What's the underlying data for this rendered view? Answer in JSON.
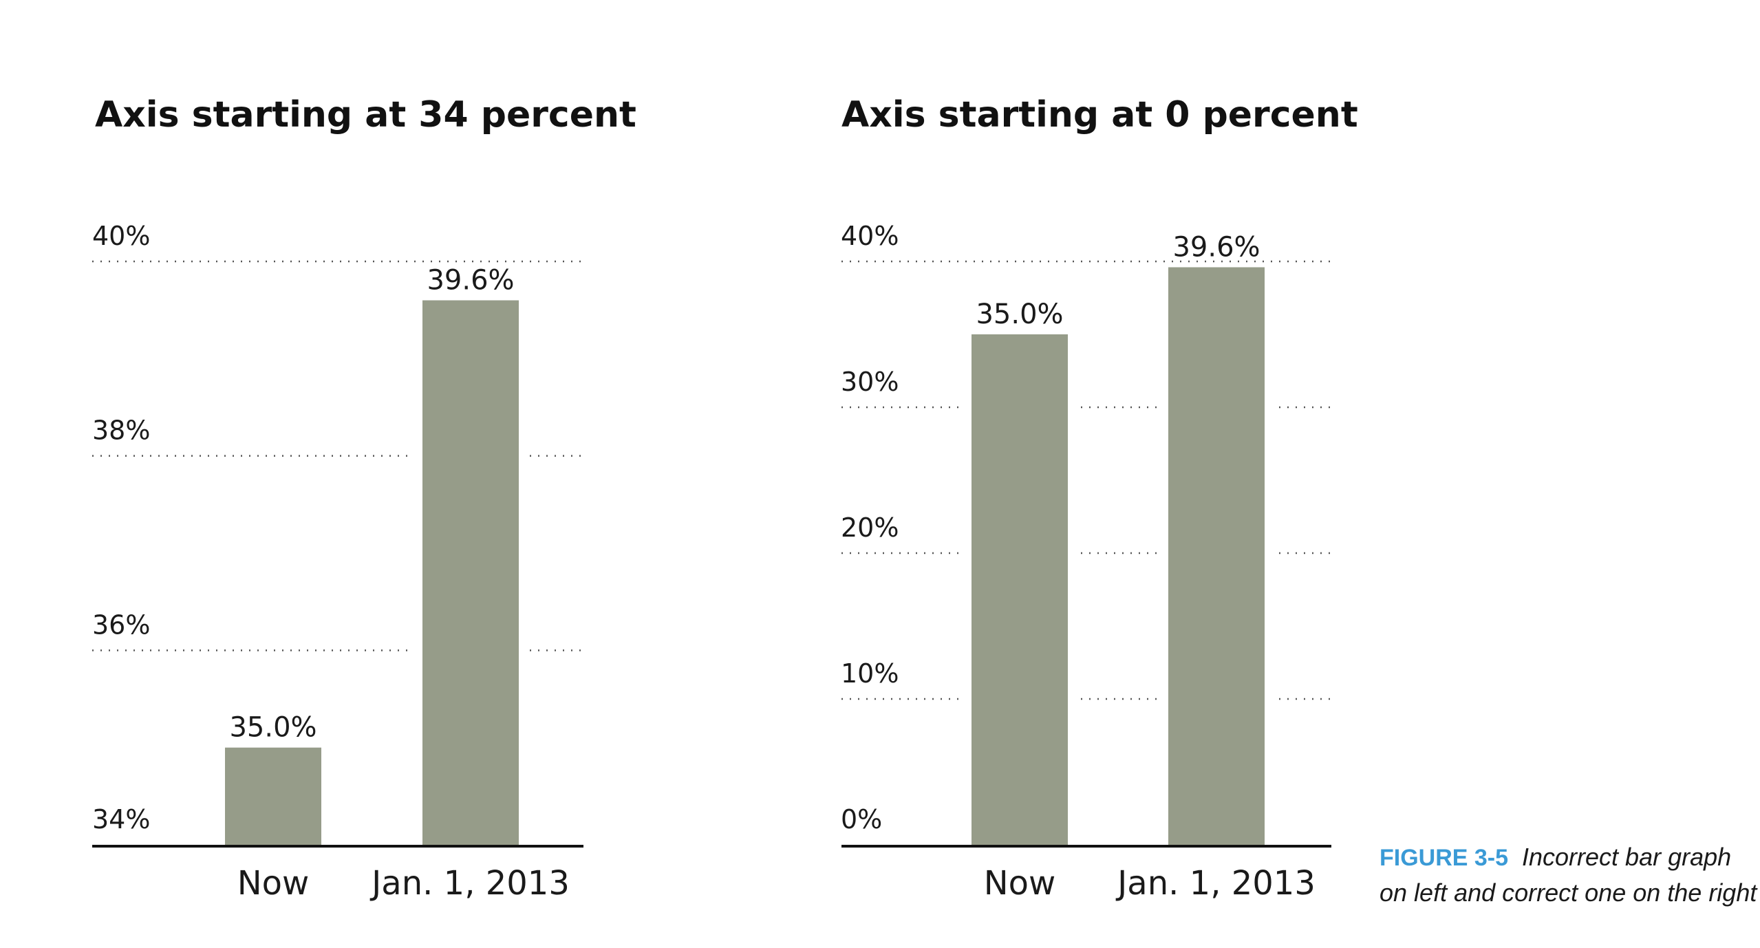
{
  "chart_data": [
    {
      "type": "bar",
      "title": "Axis starting at 34 percent",
      "categories": [
        "Now",
        "Jan. 1, 2013"
      ],
      "values": [
        35.0,
        39.6
      ],
      "value_labels": [
        "35.0%",
        "39.6%"
      ],
      "ylim": [
        34,
        40
      ],
      "yticks": [
        34,
        36,
        38,
        40
      ],
      "ytick_labels": [
        "34%",
        "36%",
        "38%",
        "40%"
      ],
      "grid": true,
      "bar_color": "#969c89"
    },
    {
      "type": "bar",
      "title": "Axis starting at 0 percent",
      "categories": [
        "Now",
        "Jan. 1, 2013"
      ],
      "values": [
        35.0,
        39.6
      ],
      "value_labels": [
        "35.0%",
        "39.6%"
      ],
      "ylim": [
        0,
        40
      ],
      "yticks": [
        0,
        10,
        20,
        30,
        40
      ],
      "ytick_labels": [
        "0%",
        "10%",
        "20%",
        "30%",
        "40%"
      ],
      "grid": true,
      "bar_color": "#969c89"
    }
  ],
  "caption": {
    "figure_id": "FIGURE 3-5",
    "line1": "Incorrect bar graph",
    "line2": "on left and correct one on the right",
    "figure_id_color": "#3a9ad6"
  }
}
